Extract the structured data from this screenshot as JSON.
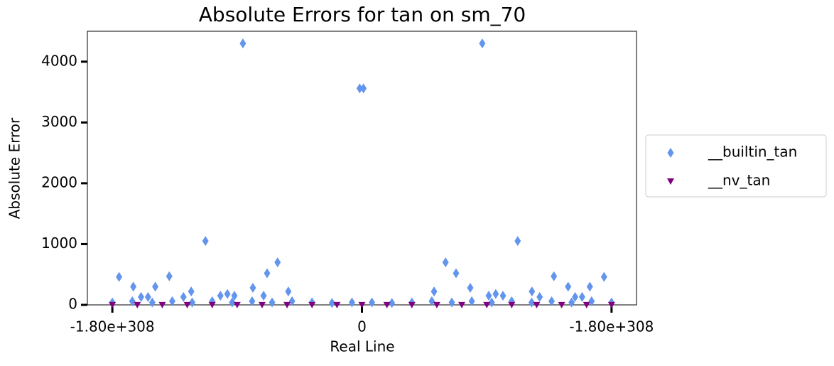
{
  "chart_data": {
    "type": "scatter",
    "title": "Absolute Errors for tan on sm_70",
    "xlabel": "Real Line",
    "ylabel": "Absolute Error",
    "xlim": [
      -1.1,
      1.1
    ],
    "ylim": [
      0,
      4500
    ],
    "xticks": [
      {
        "value": -1,
        "label": "-1.80e+308"
      },
      {
        "value": 0,
        "label": "0"
      },
      {
        "value": 1,
        "label": "-1.80e+308"
      }
    ],
    "yticks": [
      0,
      1000,
      2000,
      3000,
      4000
    ],
    "legend": "right",
    "series": [
      {
        "name": "__builtin_tan",
        "color": "#6495ed",
        "marker": "diamond",
        "x": [
          -0.477,
          0.482,
          -0.009,
          0.006,
          -0.627,
          0.624,
          -0.973,
          0.97,
          -0.916,
          -0.828,
          -0.772,
          -0.684,
          -0.437,
          -0.38,
          -0.338,
          -0.295,
          0.289,
          0.335,
          0.377,
          0.434,
          0.681,
          0.769,
          0.826,
          0.913,
          -0.885,
          -0.857,
          -0.715,
          -0.567,
          -0.539,
          -0.511,
          -0.394,
          0.508,
          0.536,
          0.565,
          0.712,
          0.854,
          0.882,
          -1.0,
          -0.92,
          -0.84,
          -0.76,
          -0.68,
          -0.6,
          -0.52,
          -0.44,
          -0.36,
          -0.28,
          -0.2,
          -0.12,
          -0.04,
          0.04,
          0.12,
          0.2,
          0.28,
          0.36,
          0.44,
          0.52,
          0.6,
          0.68,
          0.76,
          0.84,
          0.92,
          1.0
        ],
        "values": [
          4300,
          4300,
          3560,
          3560,
          1050,
          1050,
          460,
          460,
          300,
          300,
          470,
          220,
          280,
          520,
          700,
          220,
          220,
          700,
          520,
          280,
          220,
          470,
          300,
          300,
          130,
          130,
          130,
          150,
          180,
          150,
          150,
          150,
          180,
          150,
          130,
          130,
          130,
          40,
          60,
          40,
          60,
          40,
          60,
          40,
          60,
          40,
          60,
          40,
          30,
          40,
          40,
          30,
          40,
          60,
          40,
          60,
          40,
          60,
          40,
          60,
          40,
          60,
          40
        ]
      },
      {
        "name": "__nv_tan",
        "color": "#800080",
        "marker": "triangle_down",
        "x": [
          -1.0,
          -0.9,
          -0.8,
          -0.7,
          -0.6,
          -0.5,
          -0.4,
          -0.3,
          -0.2,
          -0.1,
          0.0,
          0.1,
          0.2,
          0.3,
          0.4,
          0.5,
          0.6,
          0.7,
          0.8,
          0.9,
          1.0
        ],
        "values": [
          2,
          2,
          2,
          2,
          2,
          2,
          2,
          2,
          2,
          2,
          2,
          2,
          2,
          2,
          2,
          2,
          2,
          2,
          2,
          2,
          2
        ]
      }
    ]
  }
}
